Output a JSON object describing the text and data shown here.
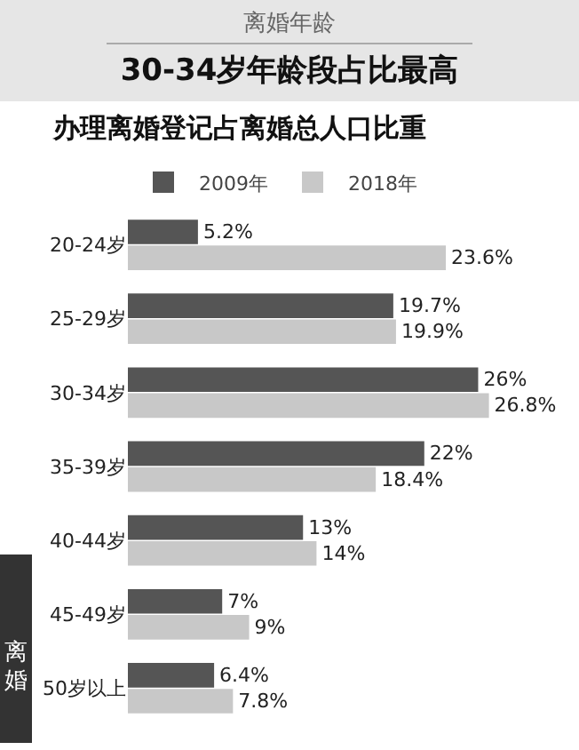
{
  "chart_data": {
    "type": "bar",
    "orientation": "horizontal",
    "title": "离婚年龄",
    "subtitle": "30-34岁年龄段占比最高",
    "annotations": [
      "办理离婚登记占离婚总人口比重",
      "离婚"
    ],
    "categories": [
      "20-24岁",
      "25-29岁",
      "30-34岁",
      "35-39岁",
      "40-44岁",
      "45-49岁",
      "50岁以上"
    ],
    "series": [
      {
        "name": "2009年",
        "color": "#555555",
        "values": [
          5.2,
          19.7,
          26,
          22,
          13,
          7,
          6.4
        ],
        "value_labels": [
          "5.2%",
          "19.7%",
          "26%",
          "22%",
          "13%",
          "7%",
          "6.4%"
        ]
      },
      {
        "name": "2018年",
        "color": "#c8c8c8",
        "values": [
          23.6,
          19.9,
          26.8,
          18.4,
          14,
          9,
          7.8
        ],
        "value_labels": [
          "23.6%",
          "19.9%",
          "26.8%",
          "18.4%",
          "14%",
          "9%",
          "7.8%"
        ]
      }
    ],
    "legend": "top left",
    "grid": false
  }
}
